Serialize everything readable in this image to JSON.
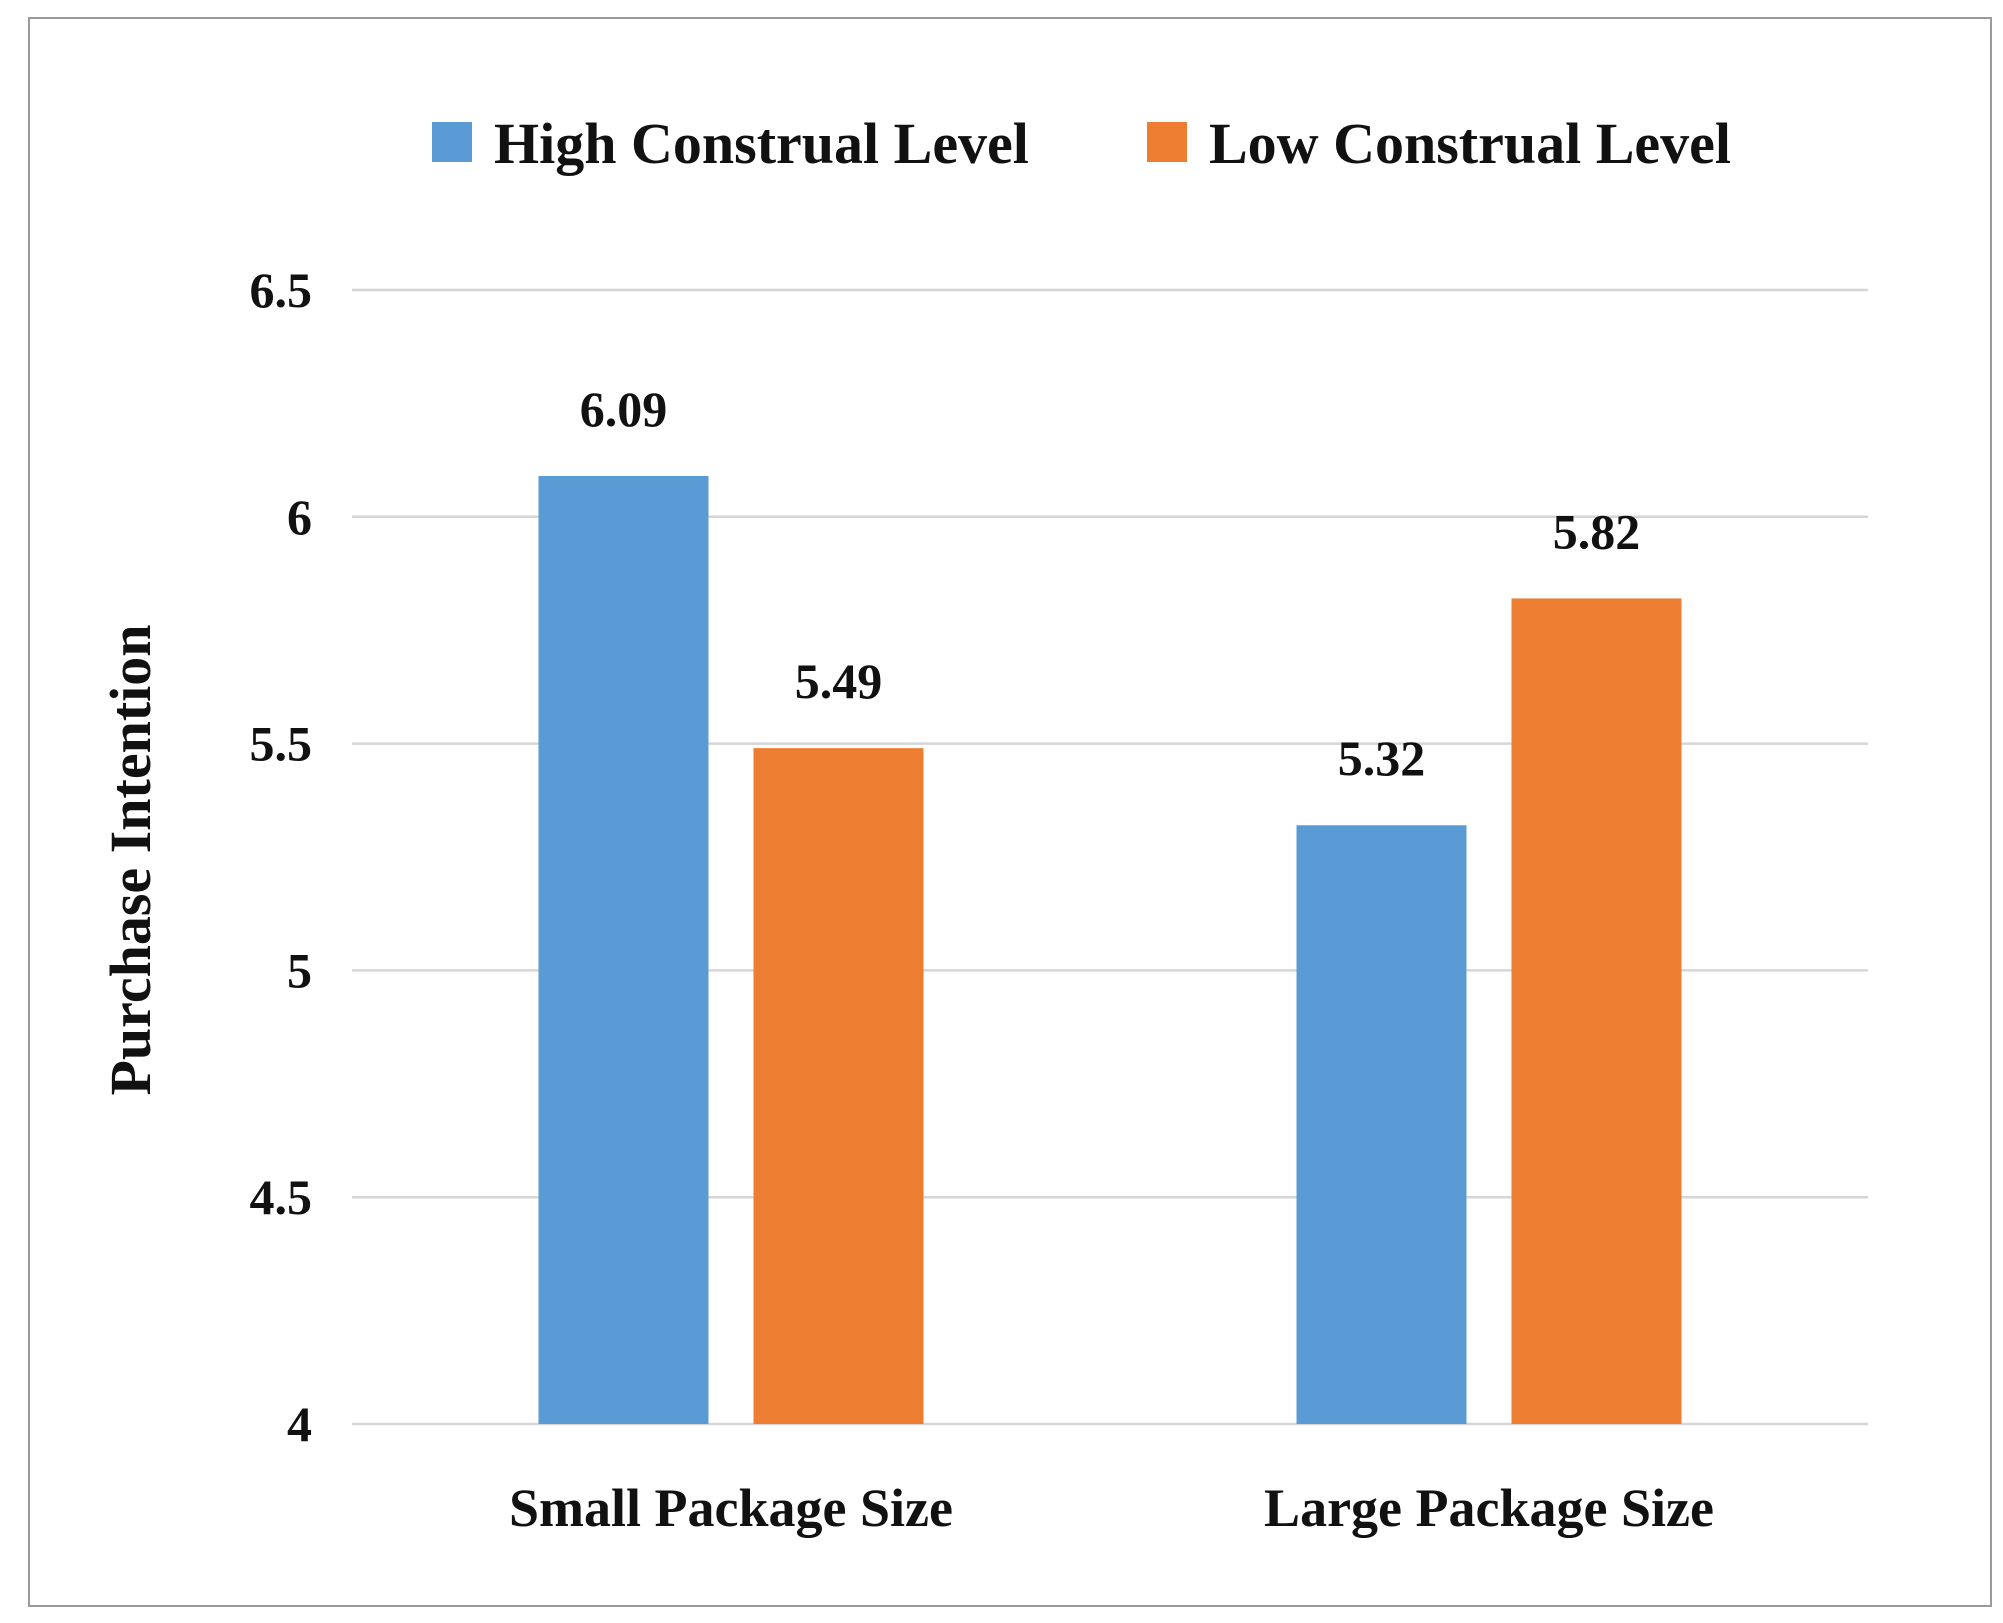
{
  "chart_data": {
    "type": "bar",
    "categories": [
      "Small Package Size",
      "Large Package Size"
    ],
    "series": [
      {
        "name": "High Construal Level",
        "values": [
          6.09,
          5.32
        ],
        "color": "#5b9bd5"
      },
      {
        "name": "Low Construal Level",
        "values": [
          5.49,
          5.82
        ],
        "color": "#ed7d31"
      }
    ],
    "data_labels": [
      [
        "6.09",
        "5.32"
      ],
      [
        "5.49",
        "5.82"
      ]
    ],
    "ylabel": "Purchase Intention",
    "xlabel": "",
    "ylim": [
      4,
      6.5
    ],
    "yticks": [
      4,
      4.5,
      5,
      5.5,
      6,
      6.5
    ],
    "ytick_labels": [
      "4",
      "4.5",
      "5",
      "5.5",
      "6",
      "6.5"
    ],
    "grid": true,
    "legend_position": "top"
  }
}
